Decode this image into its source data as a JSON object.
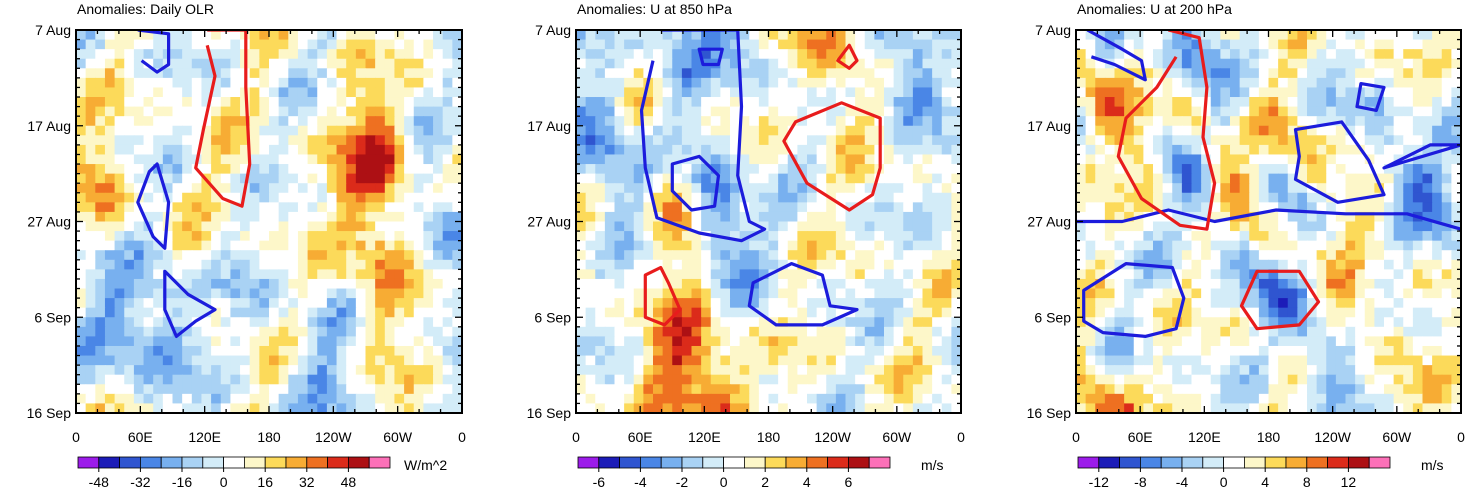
{
  "chart_data": [
    {
      "type": "heatmap",
      "title": "Anomalies: Daily OLR",
      "y_ticks": [
        "7 Aug",
        "17 Aug",
        "27 Aug",
        "6 Sep",
        "16 Sep"
      ],
      "x_ticks": [
        "0",
        "60E",
        "120E",
        "180",
        "120W",
        "60W",
        "0"
      ],
      "colorbar": {
        "labels": [
          "-48",
          "-32",
          "-16",
          "0",
          "16",
          "32",
          "48"
        ],
        "units": "W/m^2",
        "levels": [
          -56,
          -48,
          -40,
          -32,
          -24,
          -16,
          -8,
          0,
          8,
          16,
          24,
          32,
          40,
          48,
          56
        ]
      },
      "contours": [
        {
          "color": "#1c1cdc",
          "sign": "negative",
          "points": [
            [
              0.16,
              0.0
            ],
            [
              0.24,
              0.01
            ],
            [
              0.24,
              0.09
            ],
            [
              0.21,
              0.11
            ],
            [
              0.17,
              0.08
            ]
          ]
        },
        {
          "color": "#1c1cdc",
          "sign": "negative",
          "points": [
            [
              0.21,
              0.35
            ],
            [
              0.24,
              0.45
            ],
            [
              0.23,
              0.57
            ],
            [
              0.2,
              0.54
            ],
            [
              0.16,
              0.45
            ],
            [
              0.19,
              0.37
            ]
          ]
        },
        {
          "color": "#1c1cdc",
          "sign": "negative",
          "points": [
            [
              0.23,
              0.63
            ],
            [
              0.29,
              0.69
            ],
            [
              0.36,
              0.73
            ],
            [
              0.31,
              0.76
            ],
            [
              0.26,
              0.8
            ],
            [
              0.23,
              0.73
            ],
            [
              0.23,
              0.66
            ]
          ]
        },
        {
          "color": "#e81c1c",
          "sign": "positive",
          "points": [
            [
              0.34,
              0.0
            ],
            [
              0.44,
              0.0
            ],
            [
              0.44,
              0.15
            ],
            [
              0.45,
              0.35
            ],
            [
              0.43,
              0.46
            ],
            [
              0.38,
              0.44
            ],
            [
              0.31,
              0.36
            ],
            [
              0.33,
              0.26
            ],
            [
              0.36,
              0.12
            ],
            [
              0.34,
              0.04
            ]
          ]
        }
      ]
    },
    {
      "type": "heatmap",
      "title": "Anomalies: U at 850 hPa",
      "y_ticks": [
        "7 Aug",
        "17 Aug",
        "27 Aug",
        "6 Sep",
        "16 Sep"
      ],
      "x_ticks": [
        "0",
        "60E",
        "120E",
        "180",
        "120W",
        "60W",
        "0"
      ],
      "colorbar": {
        "labels": [
          "-6",
          "-4",
          "-2",
          "0",
          "2",
          "4",
          "6"
        ],
        "units": "m/s",
        "levels": [
          -7,
          -6,
          -5,
          -4,
          -3,
          -2,
          -1,
          0,
          1,
          2,
          3,
          4,
          5,
          6,
          7
        ]
      },
      "contours": [
        {
          "color": "#1c1cdc",
          "sign": "negative",
          "points": [
            [
              0.22,
              0.0
            ],
            [
              0.42,
              0.0
            ],
            [
              0.43,
              0.2
            ],
            [
              0.42,
              0.38
            ],
            [
              0.45,
              0.5
            ],
            [
              0.49,
              0.52
            ],
            [
              0.43,
              0.55
            ],
            [
              0.32,
              0.53
            ],
            [
              0.21,
              0.49
            ],
            [
              0.18,
              0.36
            ],
            [
              0.17,
              0.21
            ],
            [
              0.2,
              0.08
            ]
          ]
        },
        {
          "color": "#1c1cdc",
          "sign": "negative",
          "points": [
            [
              0.25,
              0.35
            ],
            [
              0.32,
              0.33
            ],
            [
              0.37,
              0.38
            ],
            [
              0.36,
              0.46
            ],
            [
              0.3,
              0.47
            ],
            [
              0.25,
              0.42
            ]
          ]
        },
        {
          "color": "#1c1cdc",
          "sign": "negative",
          "points": [
            [
              0.32,
              0.05
            ],
            [
              0.38,
              0.05
            ],
            [
              0.37,
              0.09
            ],
            [
              0.33,
              0.09
            ]
          ]
        },
        {
          "color": "#1c1cdc",
          "sign": "negative",
          "points": [
            [
              0.46,
              0.66
            ],
            [
              0.56,
              0.61
            ],
            [
              0.64,
              0.64
            ],
            [
              0.66,
              0.72
            ],
            [
              0.73,
              0.73
            ],
            [
              0.64,
              0.77
            ],
            [
              0.52,
              0.77
            ],
            [
              0.45,
              0.72
            ]
          ]
        },
        {
          "color": "#e81c1c",
          "sign": "positive",
          "points": [
            [
              0.57,
              0.24
            ],
            [
              0.69,
              0.19
            ],
            [
              0.79,
              0.23
            ],
            [
              0.79,
              0.36
            ],
            [
              0.77,
              0.43
            ],
            [
              0.71,
              0.47
            ],
            [
              0.6,
              0.4
            ],
            [
              0.54,
              0.29
            ]
          ]
        },
        {
          "color": "#e81c1c",
          "sign": "positive",
          "points": [
            [
              0.68,
              0.08
            ],
            [
              0.71,
              0.04
            ],
            [
              0.73,
              0.08
            ],
            [
              0.71,
              0.1
            ]
          ]
        },
        {
          "color": "#e81c1c",
          "sign": "positive",
          "points": [
            [
              0.18,
              0.64
            ],
            [
              0.22,
              0.62
            ],
            [
              0.24,
              0.66
            ],
            [
              0.27,
              0.73
            ],
            [
              0.23,
              0.77
            ],
            [
              0.18,
              0.75
            ],
            [
              0.18,
              0.69
            ]
          ]
        }
      ]
    },
    {
      "type": "heatmap",
      "title": "Anomalies: U at 200 hPa",
      "y_ticks": [
        "7 Aug",
        "17 Aug",
        "27 Aug",
        "6 Sep",
        "16 Sep"
      ],
      "x_ticks": [
        "0",
        "60E",
        "120E",
        "180",
        "120W",
        "60W",
        "0"
      ],
      "colorbar": {
        "labels": [
          "-12",
          "-8",
          "-4",
          "0",
          "4",
          "8",
          "12"
        ],
        "units": "m/s",
        "levels": [
          -14,
          -12,
          -10,
          -8,
          -6,
          -4,
          -2,
          0,
          2,
          4,
          6,
          8,
          10,
          12,
          14
        ]
      },
      "contours": [
        {
          "color": "#1c1cdc",
          "sign": "negative",
          "points": [
            [
              0.03,
              0.0
            ],
            [
              0.12,
              0.05
            ],
            [
              0.17,
              0.08
            ],
            [
              0.18,
              0.13
            ],
            [
              0.1,
              0.09
            ],
            [
              0.04,
              0.07
            ]
          ]
        },
        {
          "color": "#1c1cdc",
          "sign": "negative",
          "points": [
            [
              0.02,
              0.68
            ],
            [
              0.13,
              0.61
            ],
            [
              0.25,
              0.62
            ],
            [
              0.28,
              0.7
            ],
            [
              0.26,
              0.78
            ],
            [
              0.18,
              0.8
            ],
            [
              0.07,
              0.79
            ],
            [
              0.02,
              0.76
            ]
          ]
        },
        {
          "color": "#1c1cdc",
          "sign": "negative",
          "points": [
            [
              0.0,
              0.5
            ],
            [
              0.12,
              0.5
            ],
            [
              0.24,
              0.47
            ],
            [
              0.36,
              0.5
            ],
            [
              0.52,
              0.47
            ],
            [
              0.7,
              0.48
            ],
            [
              0.86,
              0.48
            ],
            [
              1.0,
              0.52
            ]
          ]
        },
        {
          "color": "#1c1cdc",
          "sign": "negative",
          "points": [
            [
              0.57,
              0.26
            ],
            [
              0.69,
              0.24
            ],
            [
              0.76,
              0.34
            ],
            [
              0.8,
              0.43
            ],
            [
              0.68,
              0.45
            ],
            [
              0.57,
              0.39
            ],
            [
              0.58,
              0.33
            ]
          ]
        },
        {
          "color": "#1c1cdc",
          "sign": "negative",
          "points": [
            [
              0.74,
              0.14
            ],
            [
              0.8,
              0.15
            ],
            [
              0.78,
              0.21
            ],
            [
              0.73,
              0.2
            ]
          ]
        },
        {
          "color": "#1c1cdc",
          "sign": "negative",
          "points": [
            [
              0.8,
              0.36
            ],
            [
              0.92,
              0.3
            ],
            [
              1.0,
              0.3
            ]
          ]
        },
        {
          "color": "#e81c1c",
          "sign": "positive",
          "points": [
            [
              0.24,
              0.0
            ],
            [
              0.32,
              0.02
            ],
            [
              0.34,
              0.15
            ],
            [
              0.33,
              0.28
            ],
            [
              0.36,
              0.4
            ],
            [
              0.34,
              0.52
            ],
            [
              0.27,
              0.51
            ],
            [
              0.17,
              0.44
            ],
            [
              0.11,
              0.33
            ],
            [
              0.13,
              0.23
            ],
            [
              0.21,
              0.15
            ],
            [
              0.26,
              0.07
            ]
          ]
        },
        {
          "color": "#e81c1c",
          "sign": "positive",
          "points": [
            [
              0.47,
              0.63
            ],
            [
              0.58,
              0.63
            ],
            [
              0.63,
              0.71
            ],
            [
              0.58,
              0.77
            ],
            [
              0.47,
              0.78
            ],
            [
              0.43,
              0.72
            ]
          ]
        }
      ]
    }
  ]
}
